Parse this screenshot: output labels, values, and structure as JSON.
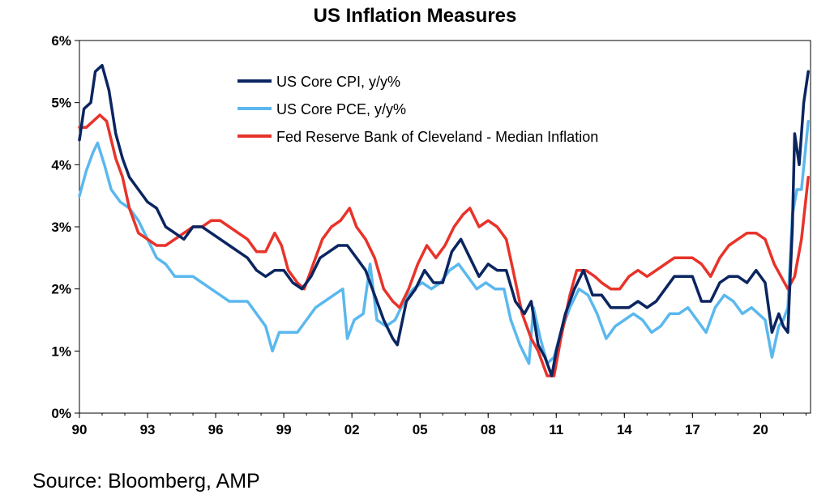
{
  "chart_data": {
    "type": "line",
    "title": "US Inflation Measures",
    "xlabel": "",
    "ylabel": "",
    "ylim": [
      0,
      6
    ],
    "y_ticks": [
      "0%",
      "1%",
      "2%",
      "3%",
      "4%",
      "5%",
      "6%"
    ],
    "xlim": [
      1990,
      2022.2
    ],
    "x_ticks": [
      "90",
      "93",
      "96",
      "99",
      "02",
      "05",
      "08",
      "11",
      "14",
      "17",
      "20"
    ],
    "grid": false,
    "legend_position": "top-center",
    "series": [
      {
        "name": "US Core CPI, y/y%",
        "color": "#0b2560",
        "points": [
          [
            1990.0,
            4.4
          ],
          [
            1990.2,
            4.9
          ],
          [
            1990.5,
            5.0
          ],
          [
            1990.7,
            5.5
          ],
          [
            1991.0,
            5.6
          ],
          [
            1991.3,
            5.2
          ],
          [
            1991.6,
            4.5
          ],
          [
            1991.9,
            4.1
          ],
          [
            1992.2,
            3.8
          ],
          [
            1992.6,
            3.6
          ],
          [
            1993.0,
            3.4
          ],
          [
            1993.4,
            3.3
          ],
          [
            1993.8,
            3.0
          ],
          [
            1994.2,
            2.9
          ],
          [
            1994.6,
            2.8
          ],
          [
            1995.0,
            3.0
          ],
          [
            1995.4,
            3.0
          ],
          [
            1995.8,
            2.9
          ],
          [
            1996.2,
            2.8
          ],
          [
            1996.6,
            2.7
          ],
          [
            1997.0,
            2.6
          ],
          [
            1997.4,
            2.5
          ],
          [
            1997.8,
            2.3
          ],
          [
            1998.2,
            2.2
          ],
          [
            1998.6,
            2.3
          ],
          [
            1999.0,
            2.3
          ],
          [
            1999.4,
            2.1
          ],
          [
            1999.8,
            2.0
          ],
          [
            2000.2,
            2.2
          ],
          [
            2000.6,
            2.5
          ],
          [
            2001.0,
            2.6
          ],
          [
            2001.4,
            2.7
          ],
          [
            2001.8,
            2.7
          ],
          [
            2002.2,
            2.5
          ],
          [
            2002.6,
            2.3
          ],
          [
            2003.0,
            1.9
          ],
          [
            2003.4,
            1.5
          ],
          [
            2003.8,
            1.2
          ],
          [
            2004.0,
            1.1
          ],
          [
            2004.4,
            1.8
          ],
          [
            2004.8,
            2.0
          ],
          [
            2005.2,
            2.3
          ],
          [
            2005.6,
            2.1
          ],
          [
            2006.0,
            2.1
          ],
          [
            2006.4,
            2.6
          ],
          [
            2006.8,
            2.8
          ],
          [
            2007.2,
            2.5
          ],
          [
            2007.6,
            2.2
          ],
          [
            2008.0,
            2.4
          ],
          [
            2008.4,
            2.3
          ],
          [
            2008.8,
            2.3
          ],
          [
            2009.2,
            1.8
          ],
          [
            2009.6,
            1.6
          ],
          [
            2009.9,
            1.8
          ],
          [
            2010.2,
            1.1
          ],
          [
            2010.5,
            0.9
          ],
          [
            2010.8,
            0.6
          ],
          [
            2011.0,
            1.0
          ],
          [
            2011.4,
            1.6
          ],
          [
            2011.8,
            2.0
          ],
          [
            2012.2,
            2.3
          ],
          [
            2012.6,
            1.9
          ],
          [
            2013.0,
            1.9
          ],
          [
            2013.4,
            1.7
          ],
          [
            2013.8,
            1.7
          ],
          [
            2014.2,
            1.7
          ],
          [
            2014.6,
            1.8
          ],
          [
            2015.0,
            1.7
          ],
          [
            2015.4,
            1.8
          ],
          [
            2015.8,
            2.0
          ],
          [
            2016.2,
            2.2
          ],
          [
            2016.6,
            2.2
          ],
          [
            2017.0,
            2.2
          ],
          [
            2017.4,
            1.8
          ],
          [
            2017.8,
            1.8
          ],
          [
            2018.2,
            2.1
          ],
          [
            2018.6,
            2.2
          ],
          [
            2019.0,
            2.2
          ],
          [
            2019.4,
            2.1
          ],
          [
            2019.8,
            2.3
          ],
          [
            2020.2,
            2.1
          ],
          [
            2020.5,
            1.3
          ],
          [
            2020.8,
            1.6
          ],
          [
            2021.0,
            1.4
          ],
          [
            2021.2,
            1.3
          ],
          [
            2021.4,
            3.0
          ],
          [
            2021.5,
            4.5
          ],
          [
            2021.7,
            4.0
          ],
          [
            2021.9,
            5.0
          ],
          [
            2022.1,
            5.5
          ]
        ]
      },
      {
        "name": "US Core PCE, y/y%",
        "color": "#5bb8ee",
        "points": [
          [
            1990.0,
            3.5
          ],
          [
            1990.3,
            3.9
          ],
          [
            1990.6,
            4.2
          ],
          [
            1990.8,
            4.35
          ],
          [
            1991.1,
            4.0
          ],
          [
            1991.4,
            3.6
          ],
          [
            1991.8,
            3.4
          ],
          [
            1992.2,
            3.3
          ],
          [
            1992.6,
            3.1
          ],
          [
            1993.0,
            2.8
          ],
          [
            1993.4,
            2.5
          ],
          [
            1993.8,
            2.4
          ],
          [
            1994.2,
            2.2
          ],
          [
            1994.6,
            2.2
          ],
          [
            1995.0,
            2.2
          ],
          [
            1995.4,
            2.1
          ],
          [
            1995.8,
            2.0
          ],
          [
            1996.2,
            1.9
          ],
          [
            1996.6,
            1.8
          ],
          [
            1997.0,
            1.8
          ],
          [
            1997.4,
            1.8
          ],
          [
            1997.8,
            1.6
          ],
          [
            1998.2,
            1.4
          ],
          [
            1998.5,
            1.0
          ],
          [
            1998.8,
            1.3
          ],
          [
            1999.2,
            1.3
          ],
          [
            1999.6,
            1.3
          ],
          [
            2000.0,
            1.5
          ],
          [
            2000.4,
            1.7
          ],
          [
            2000.8,
            1.8
          ],
          [
            2001.2,
            1.9
          ],
          [
            2001.6,
            2.0
          ],
          [
            2001.8,
            1.2
          ],
          [
            2002.1,
            1.5
          ],
          [
            2002.5,
            1.6
          ],
          [
            2002.8,
            2.4
          ],
          [
            2003.1,
            1.5
          ],
          [
            2003.5,
            1.4
          ],
          [
            2003.9,
            1.5
          ],
          [
            2004.3,
            1.8
          ],
          [
            2004.7,
            2.0
          ],
          [
            2005.1,
            2.1
          ],
          [
            2005.5,
            2.0
          ],
          [
            2005.9,
            2.1
          ],
          [
            2006.3,
            2.3
          ],
          [
            2006.7,
            2.4
          ],
          [
            2007.1,
            2.2
          ],
          [
            2007.5,
            2.0
          ],
          [
            2007.9,
            2.1
          ],
          [
            2008.3,
            2.0
          ],
          [
            2008.7,
            2.0
          ],
          [
            2009.0,
            1.5
          ],
          [
            2009.4,
            1.1
          ],
          [
            2009.8,
            0.8
          ],
          [
            2010.0,
            1.7
          ],
          [
            2010.3,
            1.2
          ],
          [
            2010.6,
            0.8
          ],
          [
            2010.9,
            0.9
          ],
          [
            2011.2,
            1.3
          ],
          [
            2011.6,
            1.7
          ],
          [
            2012.0,
            2.0
          ],
          [
            2012.4,
            1.9
          ],
          [
            2012.8,
            1.6
          ],
          [
            2013.2,
            1.2
          ],
          [
            2013.6,
            1.4
          ],
          [
            2014.0,
            1.5
          ],
          [
            2014.4,
            1.6
          ],
          [
            2014.8,
            1.5
          ],
          [
            2015.2,
            1.3
          ],
          [
            2015.6,
            1.4
          ],
          [
            2016.0,
            1.6
          ],
          [
            2016.4,
            1.6
          ],
          [
            2016.8,
            1.7
          ],
          [
            2017.2,
            1.5
          ],
          [
            2017.6,
            1.3
          ],
          [
            2018.0,
            1.7
          ],
          [
            2018.4,
            1.9
          ],
          [
            2018.8,
            1.8
          ],
          [
            2019.2,
            1.6
          ],
          [
            2019.6,
            1.7
          ],
          [
            2019.9,
            1.6
          ],
          [
            2020.2,
            1.5
          ],
          [
            2020.5,
            0.9
          ],
          [
            2020.8,
            1.4
          ],
          [
            2021.0,
            1.5
          ],
          [
            2021.2,
            1.7
          ],
          [
            2021.4,
            3.2
          ],
          [
            2021.6,
            3.6
          ],
          [
            2021.8,
            3.6
          ],
          [
            2022.1,
            4.7
          ]
        ]
      },
      {
        "name": "Fed Reserve Bank of Cleveland - Median Inflation",
        "color": "#e8332a",
        "points": [
          [
            1990.0,
            4.6
          ],
          [
            1990.3,
            4.6
          ],
          [
            1990.6,
            4.7
          ],
          [
            1990.9,
            4.8
          ],
          [
            1991.2,
            4.7
          ],
          [
            1991.6,
            4.1
          ],
          [
            1991.9,
            3.8
          ],
          [
            1992.2,
            3.3
          ],
          [
            1992.6,
            2.9
          ],
          [
            1993.0,
            2.8
          ],
          [
            1993.4,
            2.7
          ],
          [
            1993.8,
            2.7
          ],
          [
            1994.2,
            2.8
          ],
          [
            1994.6,
            2.9
          ],
          [
            1995.0,
            3.0
          ],
          [
            1995.4,
            3.0
          ],
          [
            1995.8,
            3.1
          ],
          [
            1996.2,
            3.1
          ],
          [
            1996.6,
            3.0
          ],
          [
            1997.0,
            2.9
          ],
          [
            1997.4,
            2.8
          ],
          [
            1997.8,
            2.6
          ],
          [
            1998.2,
            2.6
          ],
          [
            1998.6,
            2.9
          ],
          [
            1998.9,
            2.7
          ],
          [
            1999.2,
            2.3
          ],
          [
            1999.6,
            2.1
          ],
          [
            1999.9,
            2.0
          ],
          [
            2000.3,
            2.4
          ],
          [
            2000.7,
            2.8
          ],
          [
            2001.1,
            3.0
          ],
          [
            2001.5,
            3.1
          ],
          [
            2001.9,
            3.3
          ],
          [
            2002.2,
            3.0
          ],
          [
            2002.6,
            2.8
          ],
          [
            2003.0,
            2.5
          ],
          [
            2003.4,
            2.0
          ],
          [
            2003.8,
            1.8
          ],
          [
            2004.1,
            1.7
          ],
          [
            2004.5,
            2.0
          ],
          [
            2004.9,
            2.4
          ],
          [
            2005.3,
            2.7
          ],
          [
            2005.7,
            2.5
          ],
          [
            2006.1,
            2.7
          ],
          [
            2006.5,
            3.0
          ],
          [
            2006.9,
            3.2
          ],
          [
            2007.2,
            3.3
          ],
          [
            2007.6,
            3.0
          ],
          [
            2008.0,
            3.1
          ],
          [
            2008.4,
            3.0
          ],
          [
            2008.8,
            2.8
          ],
          [
            2009.1,
            2.3
          ],
          [
            2009.5,
            1.6
          ],
          [
            2009.9,
            1.2
          ],
          [
            2010.2,
            1.0
          ],
          [
            2010.6,
            0.6
          ],
          [
            2010.9,
            0.6
          ],
          [
            2011.2,
            1.2
          ],
          [
            2011.6,
            1.9
          ],
          [
            2011.9,
            2.3
          ],
          [
            2012.3,
            2.3
          ],
          [
            2012.7,
            2.2
          ],
          [
            2013.0,
            2.1
          ],
          [
            2013.4,
            2.0
          ],
          [
            2013.8,
            2.0
          ],
          [
            2014.2,
            2.2
          ],
          [
            2014.6,
            2.3
          ],
          [
            2015.0,
            2.2
          ],
          [
            2015.4,
            2.3
          ],
          [
            2015.8,
            2.4
          ],
          [
            2016.2,
            2.5
          ],
          [
            2016.6,
            2.5
          ],
          [
            2017.0,
            2.5
          ],
          [
            2017.4,
            2.4
          ],
          [
            2017.8,
            2.2
          ],
          [
            2018.2,
            2.5
          ],
          [
            2018.6,
            2.7
          ],
          [
            2019.0,
            2.8
          ],
          [
            2019.4,
            2.9
          ],
          [
            2019.8,
            2.9
          ],
          [
            2020.2,
            2.8
          ],
          [
            2020.6,
            2.4
          ],
          [
            2020.9,
            2.2
          ],
          [
            2021.2,
            2.0
          ],
          [
            2021.5,
            2.2
          ],
          [
            2021.8,
            2.8
          ],
          [
            2022.1,
            3.8
          ]
        ]
      }
    ],
    "source": "Source: Bloomberg, AMP"
  }
}
